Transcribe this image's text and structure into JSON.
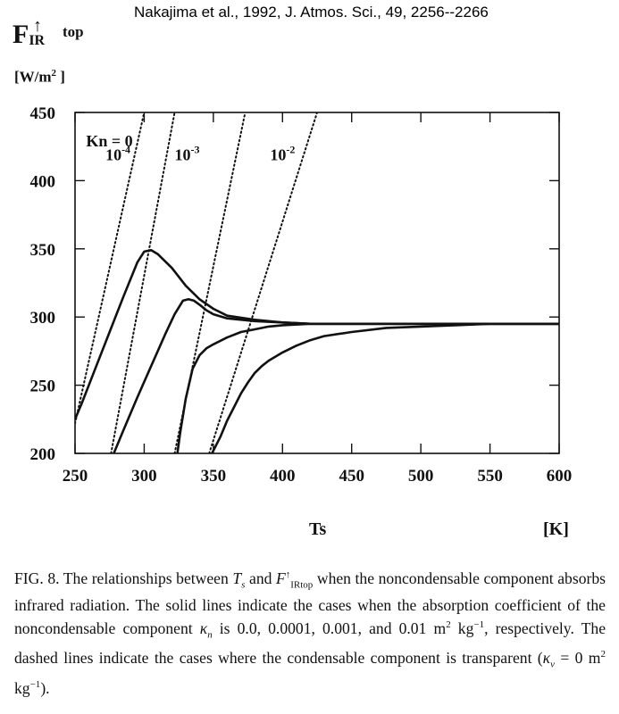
{
  "citation": "Nakajima et al., 1992, J. Atmos. Sci., 49, 2256--2266",
  "axis": {
    "y_label_main": "F",
    "y_label_sub": "IR",
    "y_label_sup": "top",
    "y_label_arrow": "↑",
    "y_unit_open": "[W/m",
    "y_unit_power": "2",
    "y_unit_close": " ]",
    "x_label": "Ts",
    "x_unit": "[K]"
  },
  "caption": {
    "fig": "F",
    "fig_rest": "IG. 8.",
    "line1_a": " The relationships between ",
    "Ts_T": "T",
    "Ts_s": "s",
    "and": " and ",
    "F_main": "F",
    "F_sup": "↑",
    "F_sub": "IRtop",
    "line1_b": " when the non­condensable component absorbs infrared radiation. The solid lines indicate the cases when the absorption coefficient of the noncondensable component ",
    "kappa": "κ",
    "kappa_n": "n",
    "line2": " is 0.0, 0.0001, 0.001, and 0.01 m",
    "sq1": "2",
    "kg1": " kg",
    "neg1": "−1",
    "line3": ", respectively. The dashed lines indicate the cases where the condensable component is transparent (",
    "kappa_v": "v",
    "line4": " = 0 m",
    "sq2": "2",
    "kg2": " kg",
    "neg2": "−1",
    "line5": ")."
  },
  "chart_data": {
    "type": "line",
    "xlim": [
      250,
      600
    ],
    "ylim": [
      200,
      450
    ],
    "x_ticks": [
      250,
      300,
      350,
      400,
      450,
      500,
      550,
      600
    ],
    "y_ticks": [
      200,
      250,
      300,
      350,
      400,
      450
    ],
    "grid": false,
    "annotations": [
      {
        "text": "Kn = 0",
        "x": 258,
        "y": 425
      },
      {
        "text": "10",
        "sup": "-4",
        "x": 272,
        "y": 415
      },
      {
        "text": "10",
        "sup": "-3",
        "x": 322,
        "y": 415
      },
      {
        "text": "10",
        "sup": "-2",
        "x": 391,
        "y": 415
      }
    ],
    "series": [
      {
        "style": "solid",
        "x": [
          250,
          255,
          265,
          275,
          285,
          295,
          300,
          305,
          310,
          320,
          330,
          340,
          350,
          360,
          380,
          400,
          420,
          450,
          500,
          550,
          600
        ],
        "y": [
          225,
          237,
          263,
          289,
          315,
          340,
          348,
          349,
          346,
          336,
          323,
          313,
          306,
          301,
          298,
          296,
          295,
          295,
          295,
          295,
          295
        ]
      },
      {
        "style": "solid",
        "x": [
          278,
          285,
          295,
          305,
          315,
          322,
          328,
          332,
          336,
          340,
          345,
          350,
          360,
          380,
          400,
          420,
          450,
          500,
          550,
          600
        ],
        "y": [
          200,
          217,
          241,
          264,
          287,
          302,
          312,
          313,
          312,
          309,
          305,
          302,
          299,
          297,
          296,
          295,
          295,
          295,
          295,
          295
        ]
      },
      {
        "style": "solid",
        "x": [
          324,
          326,
          330,
          335,
          340,
          345,
          350,
          360,
          370,
          380,
          390,
          400,
          420,
          440,
          460,
          500,
          550,
          600
        ],
        "y": [
          200,
          215,
          240,
          262,
          272,
          277,
          280,
          285,
          289,
          291,
          293,
          294,
          295,
          295,
          295,
          295,
          295,
          295
        ]
      },
      {
        "style": "solid",
        "x": [
          349,
          355,
          360,
          365,
          370,
          375,
          380,
          385,
          390,
          400,
          410,
          420,
          430,
          450,
          475,
          500,
          525,
          550,
          600
        ],
        "y": [
          200,
          212,
          224,
          234,
          244,
          252,
          259,
          264,
          268,
          274,
          279,
          283,
          286,
          289,
          292,
          293,
          294,
          295,
          295
        ]
      },
      {
        "style": "dashed",
        "x": [
          250,
          300
        ],
        "y": [
          222,
          450
        ]
      },
      {
        "style": "dashed",
        "x": [
          276,
          322
        ],
        "y": [
          200,
          450
        ]
      },
      {
        "style": "dashed",
        "x": [
          322,
          373
        ],
        "y": [
          200,
          450
        ]
      },
      {
        "style": "dashed",
        "x": [
          347,
          425
        ],
        "y": [
          200,
          450
        ]
      }
    ]
  }
}
